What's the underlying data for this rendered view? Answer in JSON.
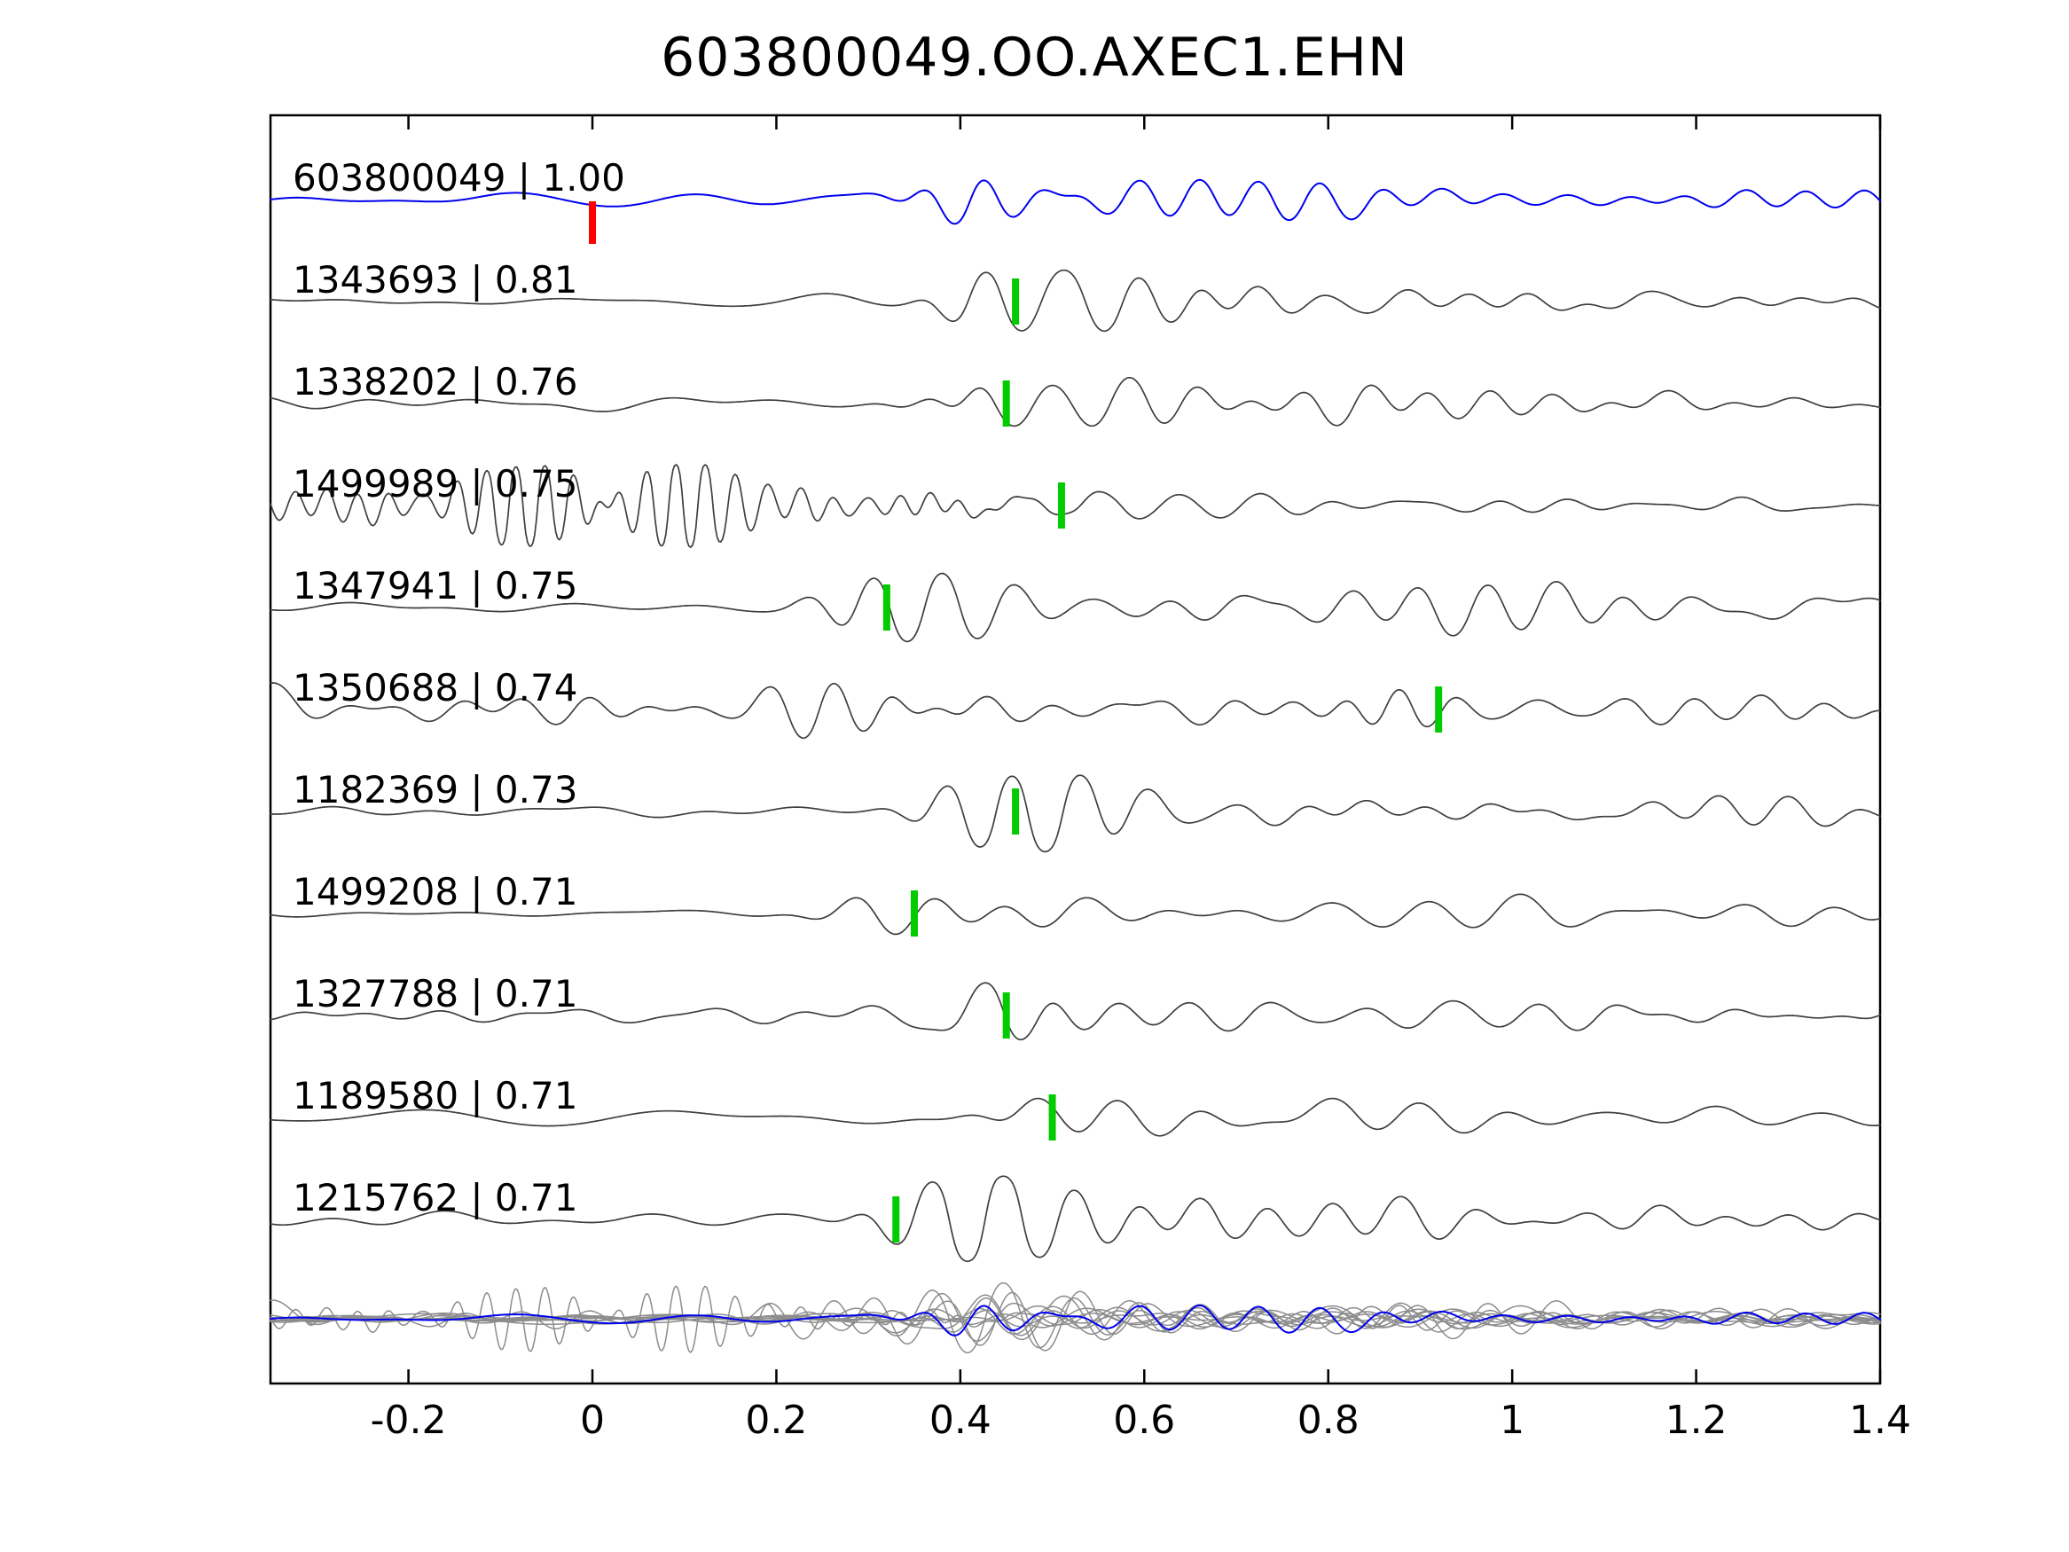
{
  "title": "603800049.OO.AXEC1.EHN",
  "chart_data": {
    "type": "line",
    "title": "603800049.OO.AXEC1.EHN",
    "subtitle": "",
    "xlabel": "",
    "ylabel": "",
    "xlim": [
      -0.35,
      1.4
    ],
    "x_ticks": [
      -0.2,
      0,
      0.2,
      0.4,
      0.6,
      0.8,
      1,
      1.2,
      1.4
    ],
    "x_tick_labels": [
      "-0.2",
      "0",
      "0.2",
      "0.4",
      "0.6",
      "0.8",
      "1",
      "1.2",
      "1.4"
    ],
    "grid": false,
    "legend": "none",
    "colors": {
      "reference_trace": "#0000ee",
      "match_trace": "#3f3f3f",
      "overlay_gray": "#8c8c8c",
      "pick_green": "#00cc00",
      "pick_red": "#ff0000",
      "axis": "#000000",
      "text": "#000000"
    },
    "traces": [
      {
        "id": "603800049",
        "cc": "1.00",
        "label": "603800049 | 1.00",
        "color": "blue",
        "pick_time": 0.0,
        "pick_color": "red",
        "synth": {
          "seed": 11,
          "noise_amp": 6,
          "nf": [
            2,
            9
          ],
          "t0": 0.43,
          "amp": 46,
          "f0": 14,
          "rise": 0.05,
          "decay": 0.3
        }
      },
      {
        "id": "1343693",
        "cc": "0.81",
        "label": "1343693 | 0.81",
        "color": "gray",
        "pick_time": 0.46,
        "pick_color": "green",
        "synth": {
          "seed": 22,
          "noise_amp": 9,
          "nf": [
            3,
            11
          ],
          "t0": 0.44,
          "amp": 44,
          "f0": 14,
          "rise": 0.05,
          "decay": 0.28
        }
      },
      {
        "id": "1338202",
        "cc": "0.76",
        "label": "1338202 | 0.76",
        "color": "gray",
        "pick_time": 0.45,
        "pick_color": "green",
        "synth": {
          "seed": 33,
          "noise_amp": 8,
          "nf": [
            2,
            10
          ],
          "t0": 0.44,
          "amp": 48,
          "f0": 13,
          "rise": 0.05,
          "decay": 0.3
        }
      },
      {
        "id": "1499989",
        "cc": "0.75",
        "label": "1499989 | 0.75",
        "color": "gray",
        "pick_time": 0.51,
        "pick_color": "green",
        "synth": {
          "seed": 44,
          "noise_amp": 6,
          "nf": [
            3,
            12
          ],
          "t0": 0.53,
          "amp": 13,
          "f0": 13,
          "rise": 0.06,
          "decay": 0.4,
          "ring": {
            "c": 0.08,
            "sl": 0.3,
            "sr": 0.17,
            "f": 32,
            "amp": 42
          }
        }
      },
      {
        "id": "1347941",
        "cc": "0.75",
        "label": "1347941 | 0.75",
        "color": "gray",
        "pick_time": 0.32,
        "pick_color": "green",
        "synth": {
          "seed": 55,
          "noise_amp": 10,
          "nf": [
            3,
            10
          ],
          "t0": 0.33,
          "amp": 48,
          "f0": 14,
          "rise": 0.06,
          "decay": 0.45
        }
      },
      {
        "id": "1350688",
        "cc": "0.74",
        "label": "1350688 | 0.74",
        "color": "gray",
        "pick_time": 0.92,
        "pick_color": "green",
        "synth": {
          "seed": 66,
          "noise_amp": 18,
          "nf": [
            4,
            16
          ],
          "t0": 0.9,
          "amp": 20,
          "f0": 15,
          "rise": 0.05,
          "decay": 0.2,
          "ring": {
            "c": 0.25,
            "sl": 0.12,
            "sr": 0.12,
            "f": 16,
            "amp": 16
          },
          "edge": {
            "amp": 30,
            "dec": 0.07
          }
        }
      },
      {
        "id": "1182369",
        "cc": "0.73",
        "label": "1182369 | 0.73",
        "color": "gray",
        "pick_time": 0.46,
        "pick_color": "green",
        "synth": {
          "seed": 77,
          "noise_amp": 9,
          "nf": [
            3,
            11
          ],
          "t0": 0.44,
          "amp": 46,
          "f0": 13,
          "rise": 0.06,
          "decay": 0.3
        }
      },
      {
        "id": "1499208",
        "cc": "0.71",
        "label": "1499208 | 0.71",
        "color": "gray",
        "pick_time": 0.35,
        "pick_color": "green",
        "synth": {
          "seed": 88,
          "noise_amp": 6,
          "nf": [
            2,
            8
          ],
          "t0": 0.35,
          "amp": 50,
          "f0": 10,
          "rise": 0.06,
          "decay": 0.35
        }
      },
      {
        "id": "1327788",
        "cc": "0.71",
        "label": "1327788 | 0.71",
        "color": "gray",
        "pick_time": 0.45,
        "pick_color": "green",
        "synth": {
          "seed": 99,
          "noise_amp": 11,
          "nf": [
            4,
            13
          ],
          "t0": 0.46,
          "amp": 48,
          "f0": 13,
          "rise": 0.05,
          "decay": 0.3
        }
      },
      {
        "id": "1189580",
        "cc": "0.71",
        "label": "1189580 | 0.71",
        "color": "gray",
        "pick_time": 0.5,
        "pick_color": "green",
        "synth": {
          "seed": 110,
          "noise_amp": 8,
          "nf": [
            2,
            9
          ],
          "t0": 0.49,
          "amp": 50,
          "f0": 11,
          "rise": 0.06,
          "decay": 0.32
        }
      },
      {
        "id": "1215762",
        "cc": "0.71",
        "label": "1215762 | 0.71",
        "color": "gray",
        "pick_time": 0.33,
        "pick_color": "green",
        "synth": {
          "seed": 121,
          "noise_amp": 9,
          "nf": [
            3,
            10
          ],
          "t0": 0.4,
          "amp": 52,
          "f0": 12,
          "rise": 0.07,
          "decay": 0.3
        }
      }
    ],
    "overlay_row": {
      "description": "All matched traces overlaid in gray with the reference trace in blue",
      "includes_reference": true
    }
  }
}
